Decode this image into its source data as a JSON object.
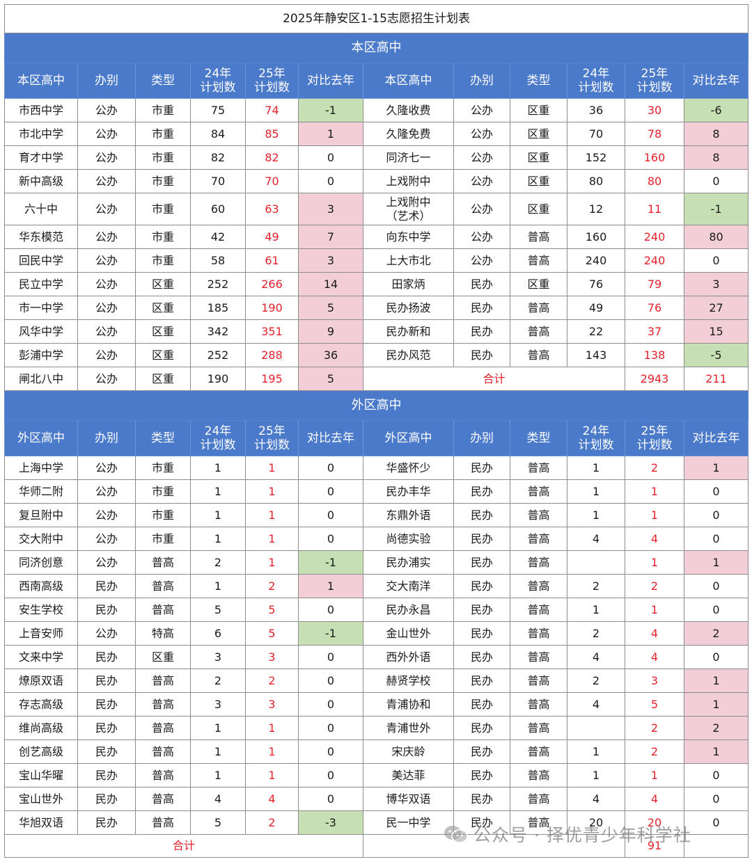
{
  "title": "2025年静安区1-15志愿招生计划表",
  "sections": [
    {
      "name": "本区高中",
      "headers": [
        "本区高中",
        "办别",
        "类型",
        "24年\n计划数",
        "25年\n计划数",
        "对比去年",
        "本区高中",
        "办别",
        "类型",
        "24年\n计划数",
        "25年\n计划数",
        "对比去年"
      ],
      "rows": [
        [
          [
            "市西中学",
            "公办",
            "市重",
            "75",
            "74",
            "-1"
          ],
          [
            "久隆收费",
            "公办",
            "区重",
            "36",
            "30",
            "-6"
          ]
        ],
        [
          [
            "市北中学",
            "公办",
            "市重",
            "84",
            "85",
            "1"
          ],
          [
            "久隆免费",
            "公办",
            "区重",
            "70",
            "78",
            "8"
          ]
        ],
        [
          [
            "育才中学",
            "公办",
            "市重",
            "82",
            "82",
            "0"
          ],
          [
            "同济七一",
            "公办",
            "区重",
            "152",
            "160",
            "8"
          ]
        ],
        [
          [
            "新中高级",
            "公办",
            "市重",
            "70",
            "70",
            "0"
          ],
          [
            "上戏附中",
            "公办",
            "区重",
            "80",
            "80",
            "0"
          ]
        ],
        [
          [
            "六十中",
            "公办",
            "市重",
            "60",
            "63",
            "3"
          ],
          [
            "上戏附中\n（艺术）",
            "公办",
            "区重",
            "12",
            "11",
            "-1"
          ]
        ],
        [
          [
            "华东模范",
            "公办",
            "市重",
            "42",
            "49",
            "7"
          ],
          [
            "向东中学",
            "公办",
            "普高",
            "160",
            "240",
            "80"
          ]
        ],
        [
          [
            "回民中学",
            "公办",
            "市重",
            "58",
            "61",
            "3"
          ],
          [
            "上大市北",
            "公办",
            "普高",
            "240",
            "240",
            "0"
          ]
        ],
        [
          [
            "民立中学",
            "公办",
            "区重",
            "252",
            "266",
            "14"
          ],
          [
            "田家炳",
            "民办",
            "区重",
            "76",
            "79",
            "3"
          ]
        ],
        [
          [
            "市一中学",
            "公办",
            "区重",
            "185",
            "190",
            "5"
          ],
          [
            "民办扬波",
            "民办",
            "普高",
            "49",
            "76",
            "27"
          ]
        ],
        [
          [
            "风华中学",
            "公办",
            "区重",
            "342",
            "351",
            "9"
          ],
          [
            "民办新和",
            "民办",
            "普高",
            "22",
            "37",
            "15"
          ]
        ],
        [
          [
            "彭浦中学",
            "公办",
            "区重",
            "252",
            "288",
            "36"
          ],
          [
            "民办风范",
            "民办",
            "普高",
            "143",
            "138",
            "-5"
          ]
        ],
        [
          [
            "闸北八中",
            "公办",
            "区重",
            "190",
            "195",
            "5"
          ],
          null
        ]
      ],
      "total": {
        "label": "合计",
        "plan": "2943",
        "diff": "211"
      }
    },
    {
      "name": "外区高中",
      "headers": [
        "外区高中",
        "办别",
        "类型",
        "24年\n计划数",
        "25年\n计划数",
        "对比去年",
        "外区高中",
        "办别",
        "类型",
        "24年\n计划数",
        "25年\n计划数",
        "对比去年"
      ],
      "rows": [
        [
          [
            "上海中学",
            "公办",
            "市重",
            "1",
            "1",
            "0"
          ],
          [
            "华盛怀少",
            "民办",
            "普高",
            "1",
            "2",
            "1"
          ]
        ],
        [
          [
            "华师二附",
            "公办",
            "市重",
            "1",
            "1",
            "0"
          ],
          [
            "民办丰华",
            "民办",
            "普高",
            "1",
            "1",
            "0"
          ]
        ],
        [
          [
            "复旦附中",
            "公办",
            "市重",
            "1",
            "1",
            "0"
          ],
          [
            "东鼎外语",
            "民办",
            "普高",
            "1",
            "1",
            "0"
          ]
        ],
        [
          [
            "交大附中",
            "公办",
            "市重",
            "1",
            "1",
            "0"
          ],
          [
            "尚德实验",
            "民办",
            "普高",
            "4",
            "4",
            "0"
          ]
        ],
        [
          [
            "同济创意",
            "公办",
            "普高",
            "2",
            "1",
            "-1"
          ],
          [
            "民办浦实",
            "民办",
            "普高",
            "",
            "1",
            "1"
          ]
        ],
        [
          [
            "西南高级",
            "民办",
            "普高",
            "1",
            "2",
            "1"
          ],
          [
            "交大南洋",
            "民办",
            "普高",
            "2",
            "2",
            "0"
          ]
        ],
        [
          [
            "安生学校",
            "民办",
            "普高",
            "5",
            "5",
            "0"
          ],
          [
            "民办永昌",
            "民办",
            "普高",
            "1",
            "1",
            "0"
          ]
        ],
        [
          [
            "上音安师",
            "公办",
            "特高",
            "6",
            "5",
            "-1"
          ],
          [
            "金山世外",
            "民办",
            "普高",
            "2",
            "4",
            "2"
          ]
        ],
        [
          [
            "文来中学",
            "民办",
            "区重",
            "3",
            "3",
            "0"
          ],
          [
            "西外外语",
            "民办",
            "普高",
            "4",
            "4",
            "0"
          ]
        ],
        [
          [
            "燎原双语",
            "民办",
            "普高",
            "2",
            "2",
            "0"
          ],
          [
            "赫贤学校",
            "民办",
            "普高",
            "2",
            "3",
            "1"
          ]
        ],
        [
          [
            "存志高级",
            "民办",
            "普高",
            "3",
            "3",
            "0"
          ],
          [
            "青浦协和",
            "民办",
            "普高",
            "4",
            "5",
            "1"
          ]
        ],
        [
          [
            "维尚高级",
            "民办",
            "普高",
            "1",
            "1",
            "0"
          ],
          [
            "青浦世外",
            "民办",
            "普高",
            "",
            "2",
            "2"
          ]
        ],
        [
          [
            "创艺高级",
            "民办",
            "普高",
            "1",
            "1",
            "0"
          ],
          [
            "宋庆龄",
            "民办",
            "普高",
            "1",
            "2",
            "1"
          ]
        ],
        [
          [
            "宝山华曜",
            "民办",
            "普高",
            "1",
            "1",
            "0"
          ],
          [
            "美达菲",
            "民办",
            "普高",
            "1",
            "1",
            "0"
          ]
        ],
        [
          [
            "宝山世外",
            "民办",
            "普高",
            "4",
            "4",
            "0"
          ],
          [
            "博华双语",
            "民办",
            "普高",
            "4",
            "4",
            "0"
          ]
        ],
        [
          [
            "华旭双语",
            "民办",
            "普高",
            "5",
            "2",
            "-3"
          ],
          [
            "民一中学",
            "民办",
            "普高",
            "20",
            "20",
            "0"
          ]
        ]
      ],
      "total": {
        "label": "合计",
        "plan": "91",
        "diff": ""
      }
    }
  ],
  "highlight_colors": {
    "increase": "#f2cfd6",
    "decrease": "#c6e0b4",
    "plan_25_text": "#e8202a",
    "header_bg": "#4a7ac9"
  },
  "watermark": {
    "icon": "wechat-icon",
    "text": "公众号 · 择优青少年科学社"
  }
}
